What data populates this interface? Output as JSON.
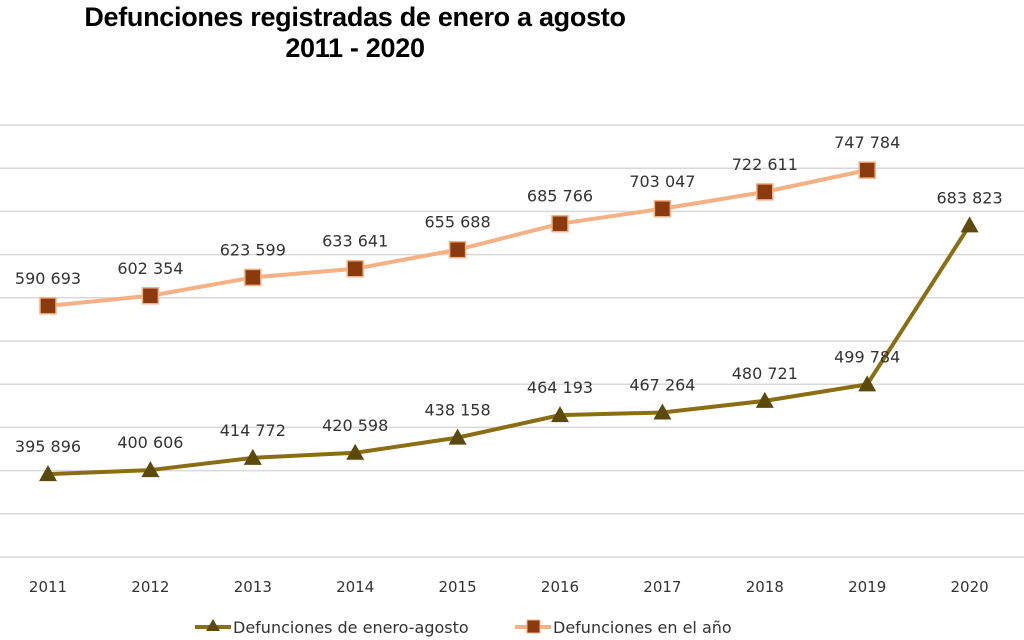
{
  "chart_data": {
    "type": "line",
    "title": "Defunciones registradas de enero a agosto",
    "subtitle": "2011 - 2020",
    "xlabel": "",
    "ylabel": "",
    "categories": [
      "2011",
      "2012",
      "2013",
      "2014",
      "2015",
      "2016",
      "2017",
      "2018",
      "2019",
      "2020"
    ],
    "ylim": [
      300000,
      800000
    ],
    "ytick_step": 50000,
    "y_tick_labels_visible": false,
    "grid": true,
    "legend_position": "bottom",
    "series": [
      {
        "name": "Defunciones de enero-agosto",
        "marker": "triangle",
        "line_color": "#8B6E14",
        "marker_color": "#5C4A0C",
        "values": [
          395896,
          400606,
          414772,
          420598,
          438158,
          464193,
          467264,
          480721,
          499784,
          683823
        ],
        "labels": [
          "395 896",
          "400 606",
          "414 772",
          "420 598",
          "438 158",
          "464 193",
          "467 264",
          "480 721",
          "499 784",
          "683 823"
        ]
      },
      {
        "name": "Defunciones en el año",
        "marker": "square",
        "line_color": "#F4B183",
        "marker_color": "#8B3A0F",
        "values": [
          590693,
          602354,
          623599,
          633641,
          655688,
          685766,
          703047,
          722611,
          747784,
          null
        ],
        "labels": [
          "590 693",
          "602 354",
          "623 599",
          "633 641",
          "655 688",
          "685 766",
          "703 047",
          "722 611",
          "747 784",
          null
        ]
      }
    ]
  }
}
